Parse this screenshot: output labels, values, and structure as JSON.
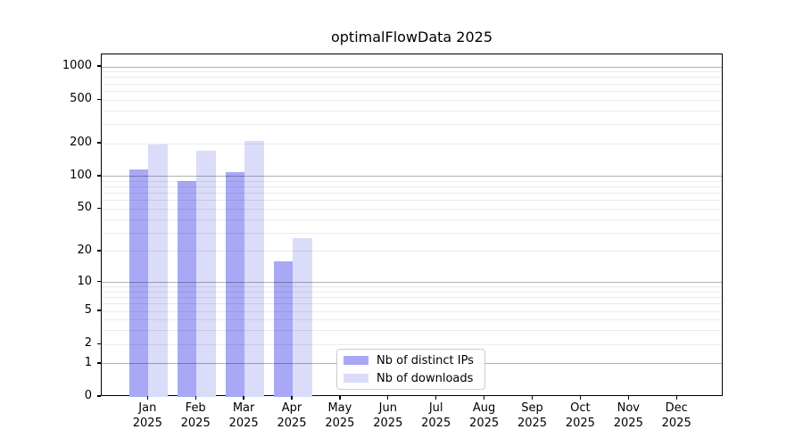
{
  "title": "optimalFlowData 2025",
  "chart_data": {
    "type": "bar",
    "title": "optimalFlowData 2025",
    "xlabel": "",
    "ylabel": "",
    "year": "2025",
    "months": [
      "Jan",
      "Feb",
      "Mar",
      "Apr",
      "May",
      "Jun",
      "Jul",
      "Aug",
      "Sep",
      "Oct",
      "Nov",
      "Dec"
    ],
    "categories": [
      "Jan 2025",
      "Feb 2025",
      "Mar 2025",
      "Apr 2025",
      "May 2025",
      "Jun 2025",
      "Jul 2025",
      "Aug 2025",
      "Sep 2025",
      "Oct 2025",
      "Nov 2025",
      "Dec 2025"
    ],
    "series": [
      {
        "name": "Nb of distinct IPs",
        "color": "#a8a8f6",
        "values": [
          116,
          91,
          110,
          16,
          null,
          null,
          null,
          null,
          null,
          null,
          null,
          null
        ]
      },
      {
        "name": "Nb of downloads",
        "color": "#dbdbfa",
        "values": [
          196,
          172,
          212,
          27,
          null,
          null,
          null,
          null,
          null,
          null,
          null,
          null
        ]
      }
    ],
    "yscale": "symlog",
    "symlog_constant": 1,
    "ylim": [
      0,
      1300
    ],
    "yticks": [
      0,
      1,
      2,
      5,
      10,
      20,
      50,
      100,
      200,
      500,
      1000
    ],
    "grid": true,
    "legend_position": "lower center"
  },
  "colors": {
    "background": "#ffffff",
    "axis": "#000000",
    "grid_major": "#b3b3b3",
    "grid_minor": "#ebebeb",
    "legend_border": "#cccccc",
    "bar_distinct_ips": "#a8a8f6",
    "bar_downloads": "#dbdbfa"
  }
}
